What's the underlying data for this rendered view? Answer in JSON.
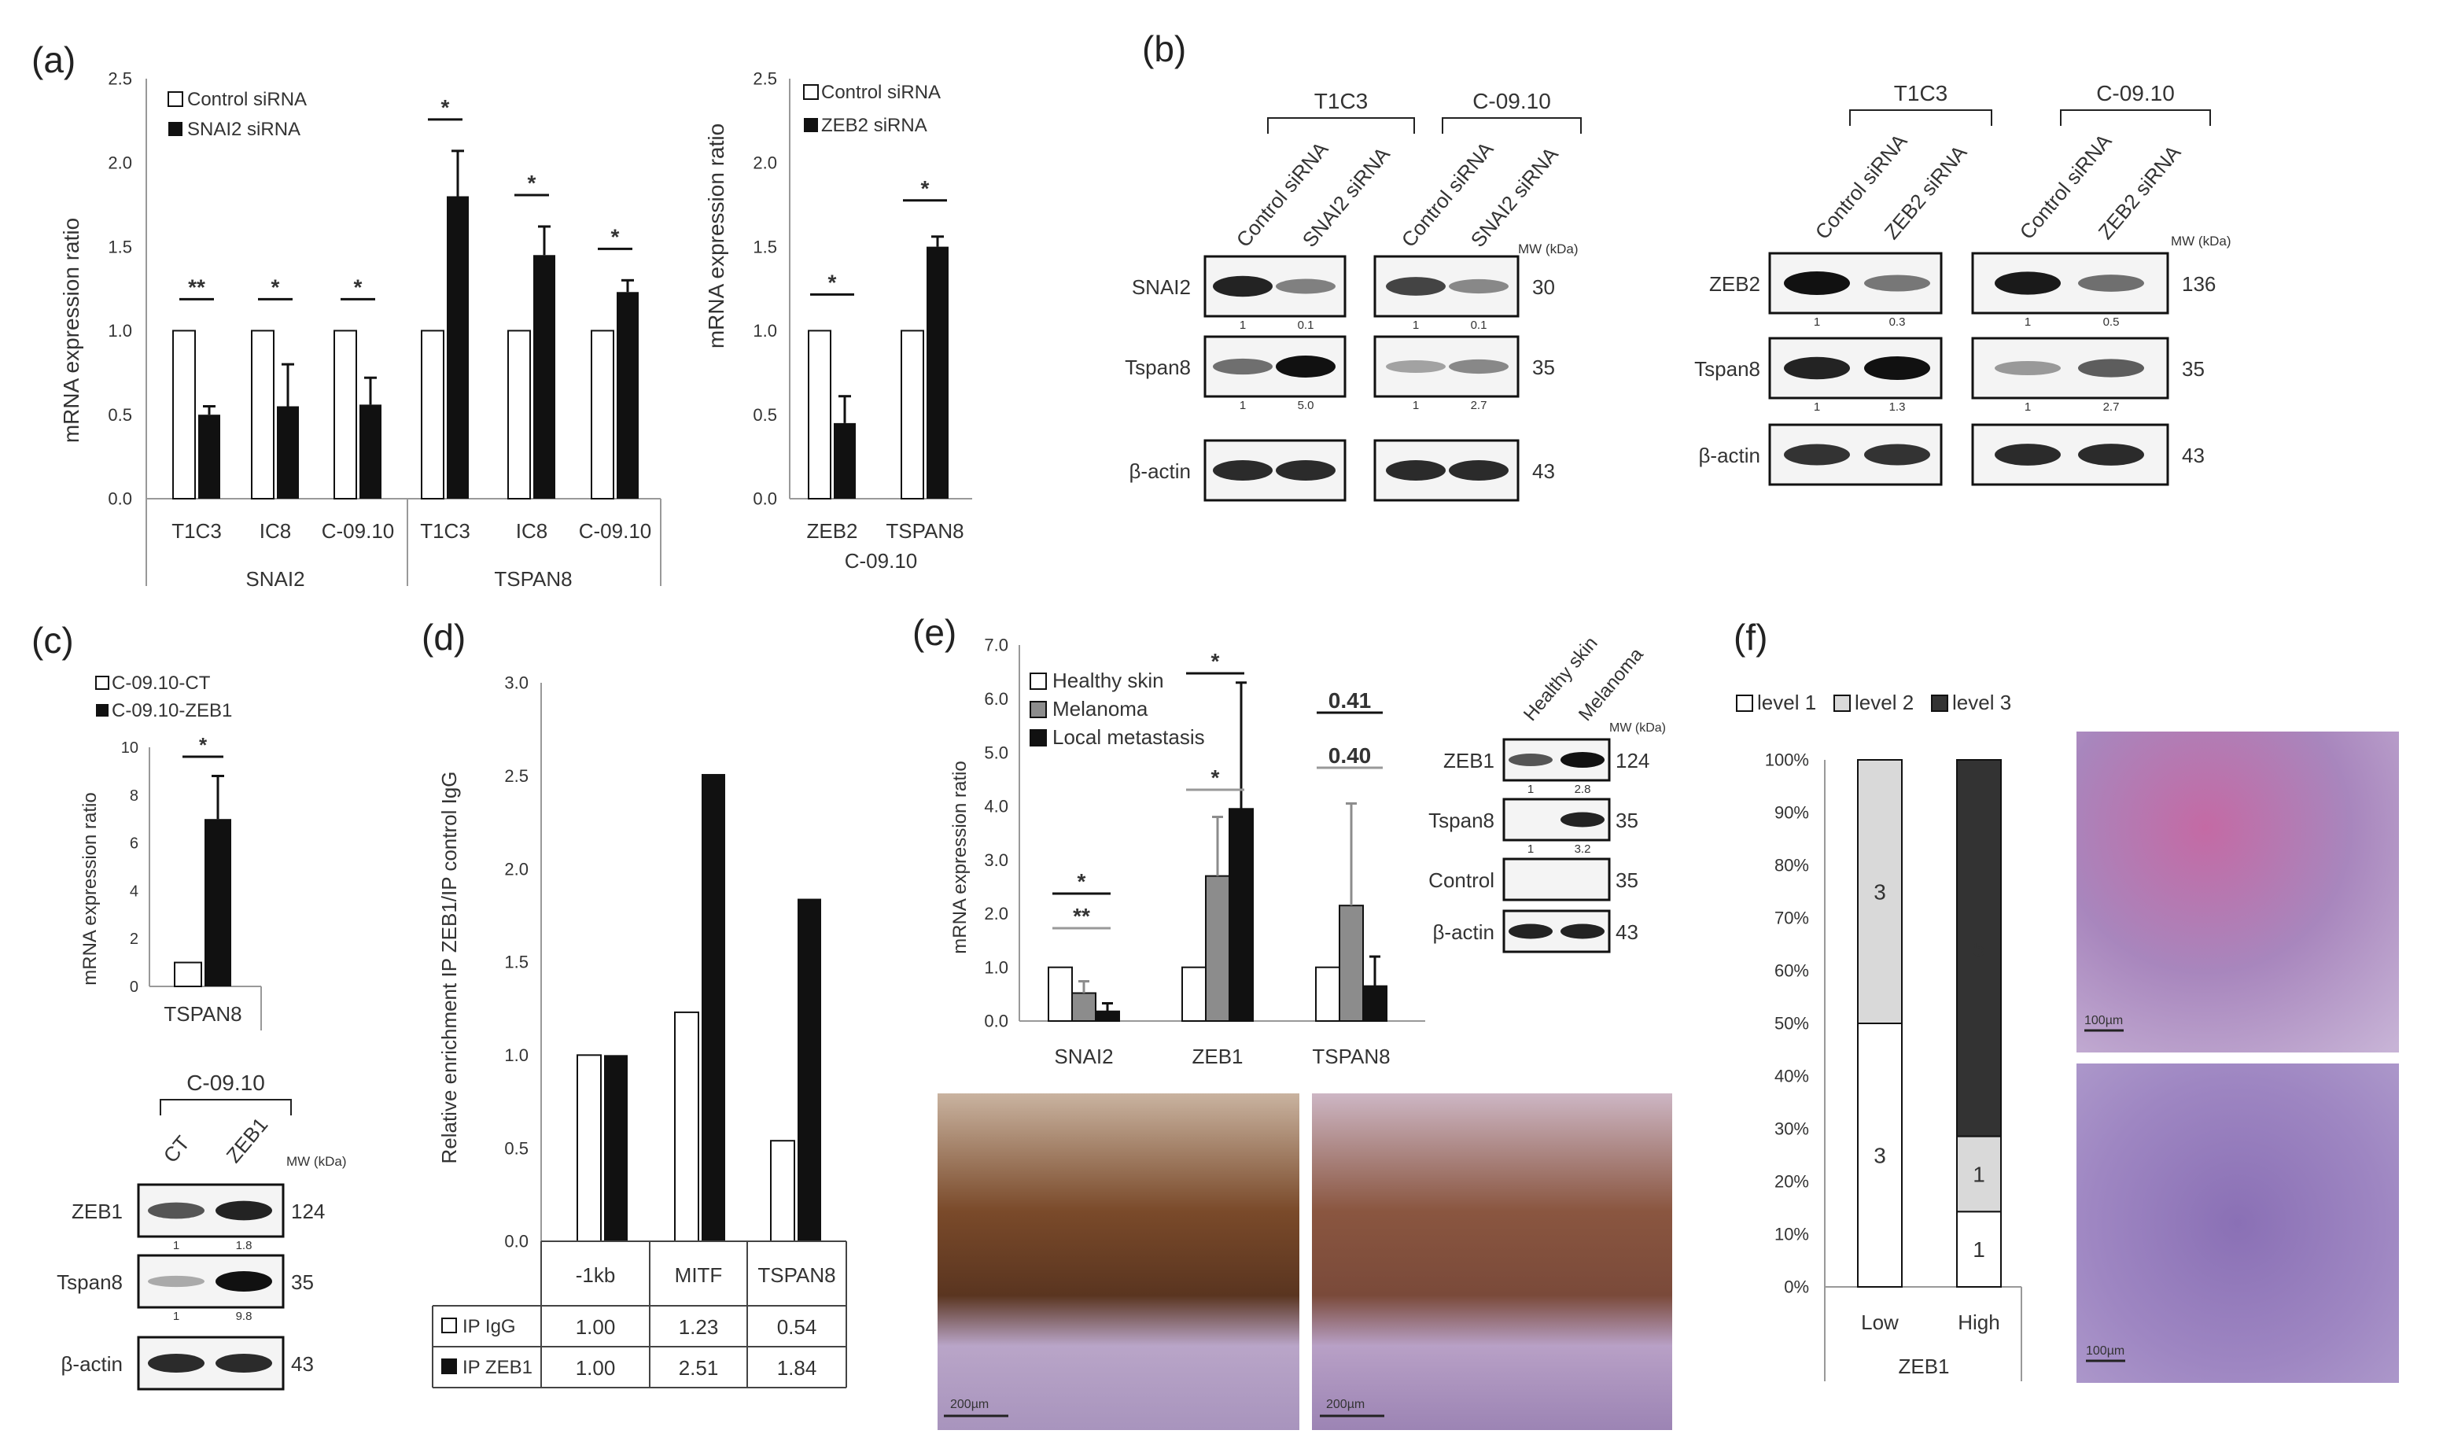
{
  "panels": {
    "a": {
      "label": "(a)",
      "chart_left": {
        "legend": [
          "Control siRNA",
          "SNAI2 siRNA"
        ],
        "ylabel": "mRNA expression ratio",
        "yticks": [
          "0.0",
          "0.5",
          "1.0",
          "1.5",
          "2.0",
          "2.5"
        ],
        "groups": [
          "SNAI2",
          "TSPAN8"
        ],
        "sig": [
          "**",
          "*",
          "*",
          "*",
          "*",
          "*"
        ]
      },
      "chart_right": {
        "legend": [
          "Control siRNA",
          "ZEB2 siRNA"
        ],
        "ylabel": "mRNA expression ratio",
        "yticks": [
          "0.0",
          "0.5",
          "1.0",
          "1.5",
          "2.0",
          "2.5"
        ],
        "group": "C-09.10",
        "sig": [
          "*",
          "*"
        ]
      }
    },
    "b": {
      "label": "(b)",
      "mw_label": "MW (kDa)",
      "left": {
        "cells": [
          "T1C3",
          "C-09.10"
        ],
        "lanes": [
          "Control siRNA",
          "SNAI2 siRNA",
          "Control siRNA",
          "SNAI2 siRNA"
        ],
        "rows": [
          {
            "name": "SNAI2",
            "mw": "30",
            "quant": [
              "1",
              "0.1",
              "1",
              "0.1"
            ]
          },
          {
            "name": "Tspan8",
            "mw": "35",
            "quant": [
              "1",
              "5.0",
              "1",
              "2.7"
            ]
          },
          {
            "name": "β-actin",
            "mw": "43",
            "quant": []
          }
        ]
      },
      "right": {
        "cells": [
          "T1C3",
          "C-09.10"
        ],
        "lanes": [
          "Control siRNA",
          "ZEB2 siRNA",
          "Control siRNA",
          "ZEB2 siRNA"
        ],
        "rows": [
          {
            "name": "ZEB2",
            "mw": "136",
            "quant": [
              "1",
              "0.3",
              "1",
              "0.5"
            ]
          },
          {
            "name": "Tspan8",
            "mw": "35",
            "quant": [
              "1",
              "1.3",
              "1",
              "2.7"
            ]
          },
          {
            "name": "β-actin",
            "mw": "43",
            "quant": []
          }
        ]
      }
    },
    "c": {
      "label": "(c)",
      "legend": [
        "C-09.10-CT",
        "C-09.10-ZEB1"
      ],
      "ylabel": "mRNA expression ratio",
      "yticks": [
        "0",
        "2",
        "4",
        "6",
        "8",
        "10"
      ],
      "sig": "*",
      "blot": {
        "cell": "C-09.10",
        "lanes": [
          "CT",
          "ZEB1"
        ],
        "mw_label": "MW (kDa)",
        "rows": [
          {
            "name": "ZEB1",
            "mw": "124",
            "quant": [
              "1",
              "1.8"
            ]
          },
          {
            "name": "Tspan8",
            "mw": "35",
            "quant": [
              "1",
              "9.8"
            ]
          },
          {
            "name": "β-actin",
            "mw": "43",
            "quant": []
          }
        ]
      }
    },
    "d": {
      "label": "(d)",
      "ylabel": "Relative enrichment IP ZEB1/IP control IgG",
      "yticks": [
        "0.0",
        "0.5",
        "1.0",
        "1.5",
        "2.0",
        "2.5",
        "3.0"
      ],
      "table_rows": [
        {
          "name": "IP IgG",
          "values": [
            "1.00",
            "1.23",
            "0.54"
          ]
        },
        {
          "name": "IP ZEB1",
          "values": [
            "1.00",
            "2.51",
            "1.84"
          ]
        }
      ]
    },
    "e": {
      "label": "(e)",
      "legend": [
        "Healthy skin",
        "Melanoma",
        "Local metastasis"
      ],
      "ylabel": "mRNA expression ratio",
      "yticks": [
        "0.0",
        "1.0",
        "2.0",
        "3.0",
        "4.0",
        "5.0",
        "6.0",
        "7.0"
      ],
      "sig_black": [
        "*",
        "*",
        "0.41"
      ],
      "sig_gray": [
        "**",
        "*",
        "0.40"
      ],
      "blot": {
        "lanes": [
          "Healthy skin",
          "Melanoma"
        ],
        "mw_label": "MW (kDa)",
        "rows": [
          {
            "name": "ZEB1",
            "mw": "124",
            "quant": [
              "1",
              "2.8"
            ]
          },
          {
            "name": "Tspan8",
            "mw": "35",
            "quant": [
              "1",
              "3.2"
            ]
          },
          {
            "name": "Control",
            "mw": "35",
            "quant": []
          },
          {
            "name": "β-actin",
            "mw": "43",
            "quant": []
          }
        ]
      },
      "scale_bars": [
        "200µm",
        "200µm"
      ]
    },
    "f": {
      "label": "(f)",
      "legend": [
        "level 1",
        "level 2",
        "level 3"
      ],
      "yticks": [
        "0%",
        "10%",
        "20%",
        "30%",
        "40%",
        "50%",
        "60%",
        "70%",
        "80%",
        "90%",
        "100%"
      ],
      "xlabel": "ZEB1",
      "scale_bars": [
        "100µm",
        "100µm"
      ]
    }
  },
  "colors": {
    "white": "#ffffff",
    "black": "#111111",
    "gray": "#8c8c8c",
    "lightgray": "#d9d9d9",
    "dark": "#333333",
    "stain_brown": "#7a4a2a",
    "stain_purple": "#9a7fb5",
    "stain_pink": "#c96aa0"
  },
  "chart_data": [
    {
      "type": "bar",
      "id": "a-left",
      "categories": [
        "T1C3",
        "IC8",
        "C-09.10",
        "T1C3",
        "IC8",
        "C-09.10"
      ],
      "series": [
        {
          "name": "Control siRNA",
          "values": [
            1.0,
            1.0,
            1.0,
            1.0,
            1.0,
            1.0
          ]
        },
        {
          "name": "SNAI2 siRNA",
          "values": [
            0.5,
            0.55,
            0.56,
            1.8,
            1.45,
            1.23
          ]
        }
      ],
      "errors": [
        0.05,
        0.25,
        0.16,
        0.27,
        0.17,
        0.07
      ],
      "ylim": [
        0,
        2.5
      ]
    },
    {
      "type": "bar",
      "id": "a-right",
      "categories": [
        "ZEB2",
        "TSPAN8"
      ],
      "series": [
        {
          "name": "Control siRNA",
          "values": [
            1.0,
            1.0
          ]
        },
        {
          "name": "ZEB2 siRNA",
          "values": [
            0.45,
            1.5
          ]
        }
      ],
      "errors": [
        0.16,
        0.06
      ],
      "ylim": [
        0,
        2.5
      ]
    },
    {
      "type": "bar",
      "id": "c",
      "categories": [
        "TSPAN8"
      ],
      "series": [
        {
          "name": "C-09.10-CT",
          "values": [
            1.0
          ]
        },
        {
          "name": "C-09.10-ZEB1",
          "values": [
            7.0
          ]
        }
      ],
      "errors": [
        1.8
      ],
      "ylim": [
        0,
        10
      ]
    },
    {
      "type": "bar",
      "id": "d",
      "categories": [
        "-1kb",
        "MITF",
        "TSPAN8"
      ],
      "series": [
        {
          "name": "IP IgG",
          "values": [
            1.0,
            1.23,
            0.54
          ]
        },
        {
          "name": "IP ZEB1",
          "values": [
            1.0,
            2.51,
            1.84
          ]
        }
      ],
      "ylim": [
        0,
        3
      ]
    },
    {
      "type": "bar",
      "id": "e",
      "categories": [
        "SNAI2",
        "ZEB1",
        "TSPAN8"
      ],
      "series": [
        {
          "name": "Healthy skin",
          "values": [
            1.0,
            1.0,
            1.0
          ]
        },
        {
          "name": "Melanoma",
          "values": [
            0.52,
            2.7,
            2.15
          ]
        },
        {
          "name": "Local metastasis",
          "values": [
            0.18,
            3.95,
            0.65
          ]
        }
      ],
      "errors_melanoma": [
        0.22,
        1.1,
        1.9
      ],
      "errors_metastasis": [
        0.15,
        2.35,
        0.55
      ],
      "ylim": [
        0,
        7
      ]
    },
    {
      "type": "bar",
      "id": "f",
      "stacked": true,
      "categories": [
        "Low",
        "High"
      ],
      "series": [
        {
          "name": "level 1",
          "values": [
            3,
            1
          ]
        },
        {
          "name": "level 2",
          "values": [
            3,
            1
          ]
        },
        {
          "name": "level 3",
          "values": [
            0,
            5
          ]
        }
      ],
      "ylim": [
        0,
        100
      ]
    }
  ]
}
